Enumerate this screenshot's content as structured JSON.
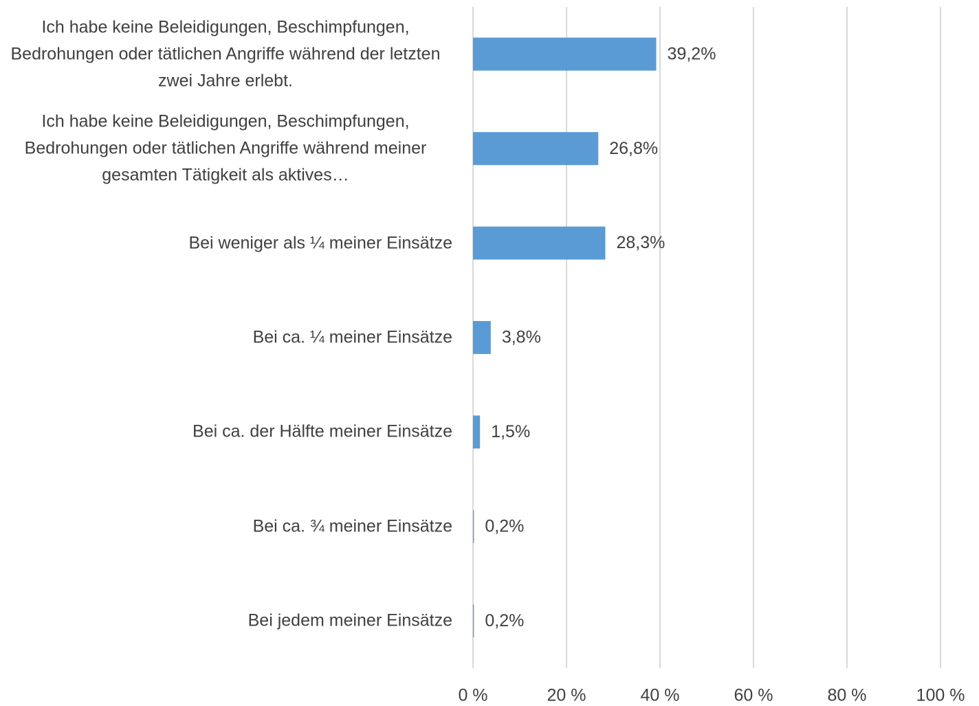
{
  "chart_data": {
    "type": "bar",
    "orientation": "horizontal",
    "categories": [
      "Ich habe keine Beleidigungen, Beschimpfungen, Bedrohungen oder tätlichen Angriffe während der letzten zwei Jahre erlebt.",
      "Ich habe keine Beleidigungen, Beschimpfungen, Bedrohungen oder tätlichen Angriffe während meiner gesamten Tätigkeit als aktives…",
      "Bei weniger als ¼ meiner Einsätze",
      "Bei ca. ¼ meiner Einsätze",
      "Bei ca. der Hälfte meiner Einsätze",
      "Bei ca. ¾ meiner Einsätze",
      "Bei jedem meiner Einsätze"
    ],
    "values": [
      39.2,
      26.8,
      28.3,
      3.8,
      1.5,
      0.2,
      0.2
    ],
    "value_labels": [
      "39,2%",
      "26,8%",
      "28,3%",
      "3,8%",
      "1,5%",
      "0,2%",
      "0,2%"
    ],
    "color": "#5b9bd5",
    "xlim": [
      0,
      100
    ],
    "xticks": [
      {
        "value": 0,
        "label": "0 %"
      },
      {
        "value": 20,
        "label": "20 %"
      },
      {
        "value": 40,
        "label": "40 %"
      },
      {
        "value": 60,
        "label": "60 %"
      },
      {
        "value": 80,
        "label": "80 %"
      },
      {
        "value": 100,
        "label": "100 %"
      }
    ],
    "grid": true
  }
}
